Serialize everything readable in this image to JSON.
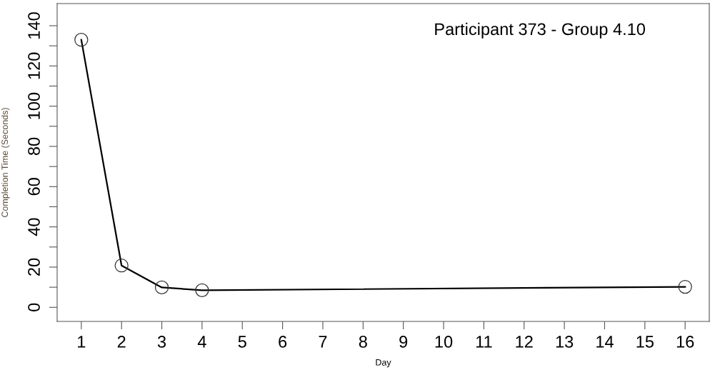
{
  "chart_data": {
    "type": "line",
    "title": "Participant 373 - Group 4.10",
    "xlabel": "Day",
    "ylabel": "Completion Time (Seconds)",
    "x": [
      1,
      2,
      3,
      4,
      16
    ],
    "series": [
      {
        "color": "#000000",
        "values": [
          133,
          20.8,
          9.9,
          8.5,
          10.2
        ]
      }
    ],
    "xlim": [
      0.4,
      16.6
    ],
    "xticks": [
      1,
      2,
      3,
      4,
      5,
      6,
      7,
      8,
      9,
      10,
      11,
      12,
      13,
      14,
      15,
      16
    ],
    "ylim": [
      -7,
      151
    ],
    "yticks": [
      0,
      {
        "value": 10,
        "label": null
      },
      20,
      {
        "value": 30,
        "label": null
      },
      40,
      {
        "value": 50,
        "label": null
      },
      60,
      {
        "value": 70,
        "label": null
      },
      80,
      {
        "value": 90,
        "label": null
      },
      100,
      {
        "value": 110,
        "label": null
      },
      120,
      {
        "value": 130,
        "label": null
      },
      140
    ],
    "marker": "circle",
    "line_style": "solid",
    "grid": false,
    "legend": false
  }
}
